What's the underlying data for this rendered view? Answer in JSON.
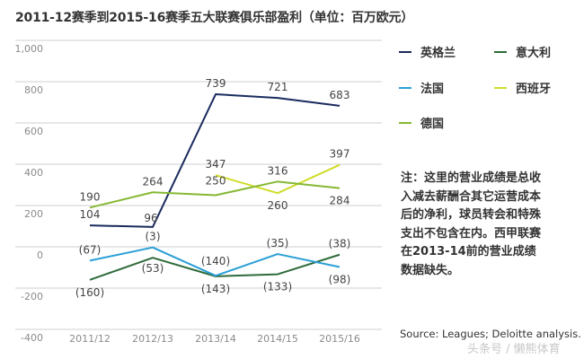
{
  "chart_data": {
    "type": "line",
    "title": "2011-12赛季到2015-16赛季五大联赛俱乐部盈利（单位：百万欧元）",
    "xlabel": "",
    "ylabel": "",
    "categories": [
      "2011/12",
      "2012/13",
      "2013/14",
      "2014/15",
      "2015/16"
    ],
    "ylim": [
      -400,
      1000
    ],
    "yticks": [
      1000,
      800,
      600,
      400,
      200,
      0,
      -200,
      -400
    ],
    "ytick_labels": [
      "1,000",
      "800",
      "600",
      "400",
      "200",
      "0",
      "-200",
      "-400"
    ],
    "grid": true,
    "legend_position": "right",
    "series": [
      {
        "name": "英格兰",
        "color": "#1a2b5e",
        "values": [
          104,
          96,
          739,
          721,
          683
        ],
        "labels": [
          "104",
          "96",
          "739",
          "721",
          "683"
        ]
      },
      {
        "name": "意大利",
        "color": "#2e6b3a",
        "values": [
          -160,
          -53,
          -143,
          -133,
          -38
        ],
        "labels": [
          "(160)",
          "(53)",
          "(143)",
          "(133)",
          "(38)"
        ]
      },
      {
        "name": "法国",
        "color": "#2a9fd6",
        "values": [
          -67,
          -3,
          -140,
          -35,
          -98
        ],
        "labels": [
          "(67)",
          "(3)",
          "(140)",
          "(35)",
          "(98)"
        ]
      },
      {
        "name": "西班牙",
        "color": "#cfdc2a",
        "values": [
          null,
          null,
          347,
          260,
          397
        ],
        "labels": [
          null,
          null,
          "347",
          "260",
          "397"
        ]
      },
      {
        "name": "德国",
        "color": "#86b833",
        "values": [
          190,
          264,
          250,
          316,
          284
        ],
        "labels": [
          "190",
          "264",
          "250",
          "316",
          "284"
        ]
      }
    ]
  },
  "note": "注：这里的营业成绩是总收入减去薪酬合其它运营成本后的净利，球员转会和特殊支出不包含在内。西甲联赛在2013-14前的营业成绩数据缺失。",
  "note_lines": [
    "注：这里的营业成绩是总收",
    "入减去薪酬合其它运营成本",
    "后的净利，球员转会和特殊",
    "支出不包含在内。西甲联赛",
    "在2013-14前的营业成绩",
    "数据缺失。"
  ],
  "source": "Source: Leagues; Deloitte analysis.",
  "watermark": "头条号 / 懒熊体育"
}
